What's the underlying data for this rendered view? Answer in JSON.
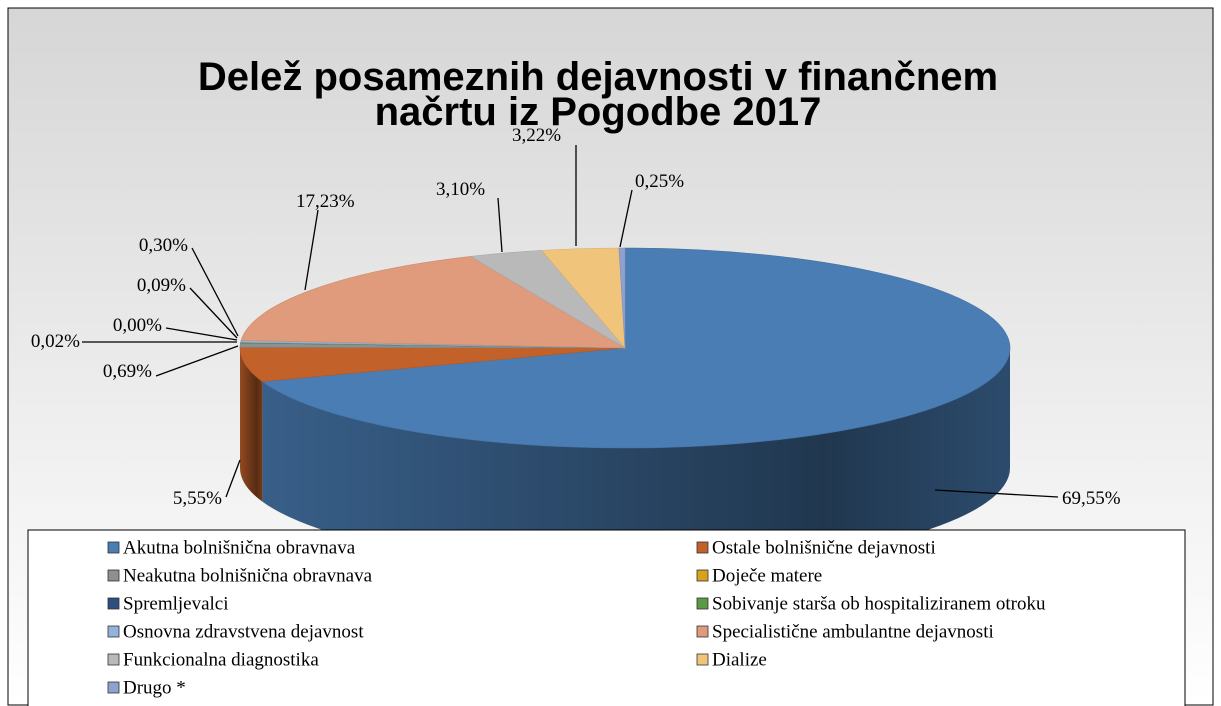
{
  "chart_data": {
    "type": "pie3d",
    "title": [
      "Delež posameznih dejavnosti v finančnem",
      "načrtu iz Pogodbe 2017"
    ],
    "categories": [
      "Akutna bolnišnična obravnava",
      "Ostale bolnišnične dejavnosti",
      "Neakutna bolnišnična obravnava",
      "Doječe matere",
      "Spremljevalci",
      "Sobivanje starša ob hospitaliziranem otroku",
      "Osnovna zdravstvena dejavnost",
      "Specialistične ambulantne dejavnosti",
      "Funkcionalna diagnostika",
      "Dialize",
      "Drugo *"
    ],
    "values": [
      69.55,
      5.55,
      0.69,
      0.02,
      0.0,
      0.09,
      0.3,
      17.23,
      3.1,
      3.22,
      0.25
    ],
    "value_labels": [
      "69,55%",
      "5,55%",
      "0,69%",
      "0,02%",
      "0,00%",
      "0,09%",
      "0,30%",
      "17,23%",
      "3,10%",
      "3,22%",
      "0,25%"
    ],
    "colors": [
      "#4a7db4",
      "#c2622a",
      "#8f8f8f",
      "#d9a21b",
      "#2d4e7e",
      "#5b9a45",
      "#93b3da",
      "#e09a7c",
      "#b9b9b9",
      "#f1c47c",
      "#8fa2cf"
    ],
    "legend": "bottom"
  }
}
